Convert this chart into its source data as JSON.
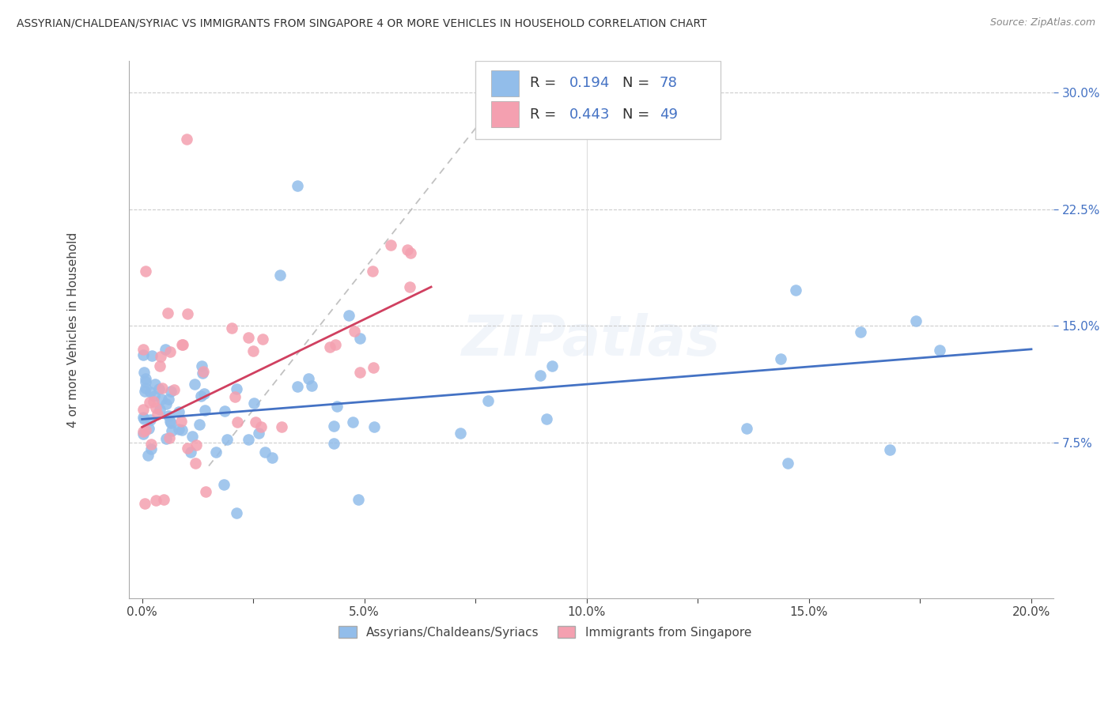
{
  "title": "ASSYRIAN/CHALDEAN/SYRIAC VS IMMIGRANTS FROM SINGAPORE 4 OR MORE VEHICLES IN HOUSEHOLD CORRELATION CHART",
  "source": "Source: ZipAtlas.com",
  "ylabel": "4 or more Vehicles in Household",
  "legend_label1": "Assyrians/Chaldeans/Syriacs",
  "legend_label2": "Immigrants from Singapore",
  "R1": 0.194,
  "N1": 78,
  "R2": 0.443,
  "N2": 49,
  "color1": "#92BDEA",
  "color2": "#F4A0B0",
  "trendline1_color": "#4472C4",
  "trendline2_color": "#D04060",
  "trendline_dash_color": "#BBBBBB",
  "xlim": [
    0.0,
    0.2
  ],
  "ylim": [
    0.0,
    0.3
  ],
  "xtick_labels": [
    "0.0%",
    "",
    "5.0%",
    "",
    "10.0%",
    "",
    "15.0%",
    "",
    "20.0%"
  ],
  "xtick_vals": [
    0.0,
    0.025,
    0.05,
    0.075,
    0.1,
    0.125,
    0.15,
    0.175,
    0.2
  ],
  "ytick_labels": [
    "7.5%",
    "15.0%",
    "22.5%",
    "30.0%"
  ],
  "ytick_vals": [
    0.075,
    0.15,
    0.225,
    0.3
  ],
  "watermark": "ZIPatlas",
  "trendline1_x": [
    0.0,
    0.2
  ],
  "trendline1_y": [
    0.09,
    0.135
  ],
  "trendline2_x": [
    0.0,
    0.065
  ],
  "trendline2_y": [
    0.085,
    0.175
  ],
  "dashline_x": [
    0.015,
    0.08
  ],
  "dashline_y": [
    0.06,
    0.295
  ]
}
